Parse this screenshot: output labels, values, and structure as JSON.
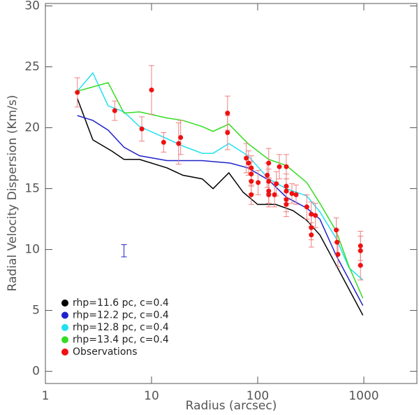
{
  "chart_data": {
    "type": "line",
    "xlabel": "Radius (arcsec)",
    "ylabel": "Radial Velocity Dispersion (Km/s)",
    "xscale": "log",
    "xlim": [
      1,
      3162
    ],
    "ylim": [
      -1,
      30.2
    ],
    "xticks": [
      1,
      10,
      100,
      1000
    ],
    "yticks": [
      0,
      5,
      10,
      15,
      20,
      25,
      30
    ],
    "legend": "lower left",
    "series": [
      {
        "name": "rhp=11.6 pc, c=0.4",
        "color": "#000000",
        "x": [
          2,
          2.8,
          4.2,
          5.5,
          7.7,
          14,
          19.7,
          30,
          38,
          53.5,
          73,
          100,
          148,
          215,
          290,
          385,
          550,
          980
        ],
        "values": [
          22.4,
          19.0,
          18.1,
          17.4,
          17.4,
          16.7,
          16.1,
          15.8,
          15.0,
          16.3,
          14.7,
          13.7,
          13.7,
          13.2,
          12.4,
          11.2,
          8.7,
          4.6
        ]
      },
      {
        "name": "rhp=12.2 pc, c=0.4",
        "color": "#2222cc",
        "x": [
          2,
          2.8,
          3.9,
          5.5,
          7.7,
          14,
          30,
          55,
          81,
          127,
          186,
          290,
          385,
          550,
          980
        ],
        "values": [
          21.0,
          20.6,
          19.8,
          18.4,
          17.7,
          17.3,
          17.3,
          17.1,
          16.7,
          15.7,
          14.3,
          13.4,
          12.5,
          9.5,
          5.4
        ]
      },
      {
        "name": "rhp=12.8 pc, c=0.4",
        "color": "#22e0f0",
        "x": [
          2,
          2.8,
          3.9,
          5.5,
          7.7,
          14,
          19.7,
          30,
          38,
          53.5,
          81,
          127,
          186,
          290,
          385,
          550,
          725,
          980
        ],
        "values": [
          23.0,
          24.5,
          21.8,
          21.3,
          20.1,
          19.1,
          18.5,
          17.9,
          17.9,
          18.7,
          17.7,
          15.8,
          15.0,
          14.4,
          13.1,
          10.9,
          8.5,
          7.5
        ]
      },
      {
        "name": "rhp=13.4 pc, c=0.4",
        "color": "#33dd22",
        "x": [
          2,
          3.9,
          5.5,
          7.7,
          14,
          19.7,
          30,
          38,
          53.5,
          81,
          127,
          186,
          290,
          385,
          550,
          725,
          980
        ],
        "values": [
          23.0,
          23.7,
          21.2,
          21.3,
          20.8,
          20.6,
          20.1,
          19.7,
          20.3,
          18.7,
          17.4,
          16.9,
          15.5,
          13.8,
          11.5,
          8.6,
          6.0
        ]
      },
      {
        "name": "Observations",
        "color": "#ee1111",
        "type": "scatter",
        "error_color": "#f08080",
        "x": [
          2,
          4.5,
          8.1,
          10,
          13,
          18,
          18.8,
          52,
          52,
          78,
          82,
          87,
          87,
          87,
          87,
          101,
          123,
          127,
          127,
          127,
          127,
          144,
          150,
          160,
          186,
          186,
          186,
          186,
          186,
          210,
          230,
          290,
          320,
          320,
          320,
          350,
          550,
          560,
          570,
          930,
          930,
          930
        ],
        "values": [
          22.9,
          21.4,
          19.9,
          23.1,
          18.8,
          18.7,
          19.2,
          19.6,
          21.2,
          17.5,
          17.1,
          16.7,
          16.2,
          15.6,
          14.5,
          15.5,
          16.1,
          17.1,
          15.6,
          14.8,
          14.5,
          14.5,
          15.4,
          16.8,
          16.8,
          15.2,
          14.8,
          14.1,
          13.7,
          14.6,
          14.5,
          13.5,
          12.9,
          11.8,
          11.2,
          12.8,
          11.6,
          10.6,
          9.6,
          10.3,
          9.9,
          8.7
        ],
        "errors": [
          1.2,
          0.8,
          1.0,
          2.0,
          0.8,
          1.7,
          1.4,
          1.4,
          1.4,
          1.2,
          1.0,
          1.0,
          1.0,
          1.0,
          0.8,
          1.0,
          1.0,
          1.2,
          1.0,
          1.0,
          1.0,
          1.0,
          1.0,
          1.0,
          1.0,
          1.0,
          1.0,
          1.0,
          1.0,
          0.8,
          0.8,
          1.0,
          1.0,
          1.0,
          1.0,
          1.0,
          1.0,
          1.0,
          1.0,
          1.2,
          1.2,
          1.2
        ]
      }
    ],
    "error_bar": {
      "x": 5.5,
      "y": 9.9,
      "error": 0.5,
      "color": "#2222cc"
    }
  }
}
